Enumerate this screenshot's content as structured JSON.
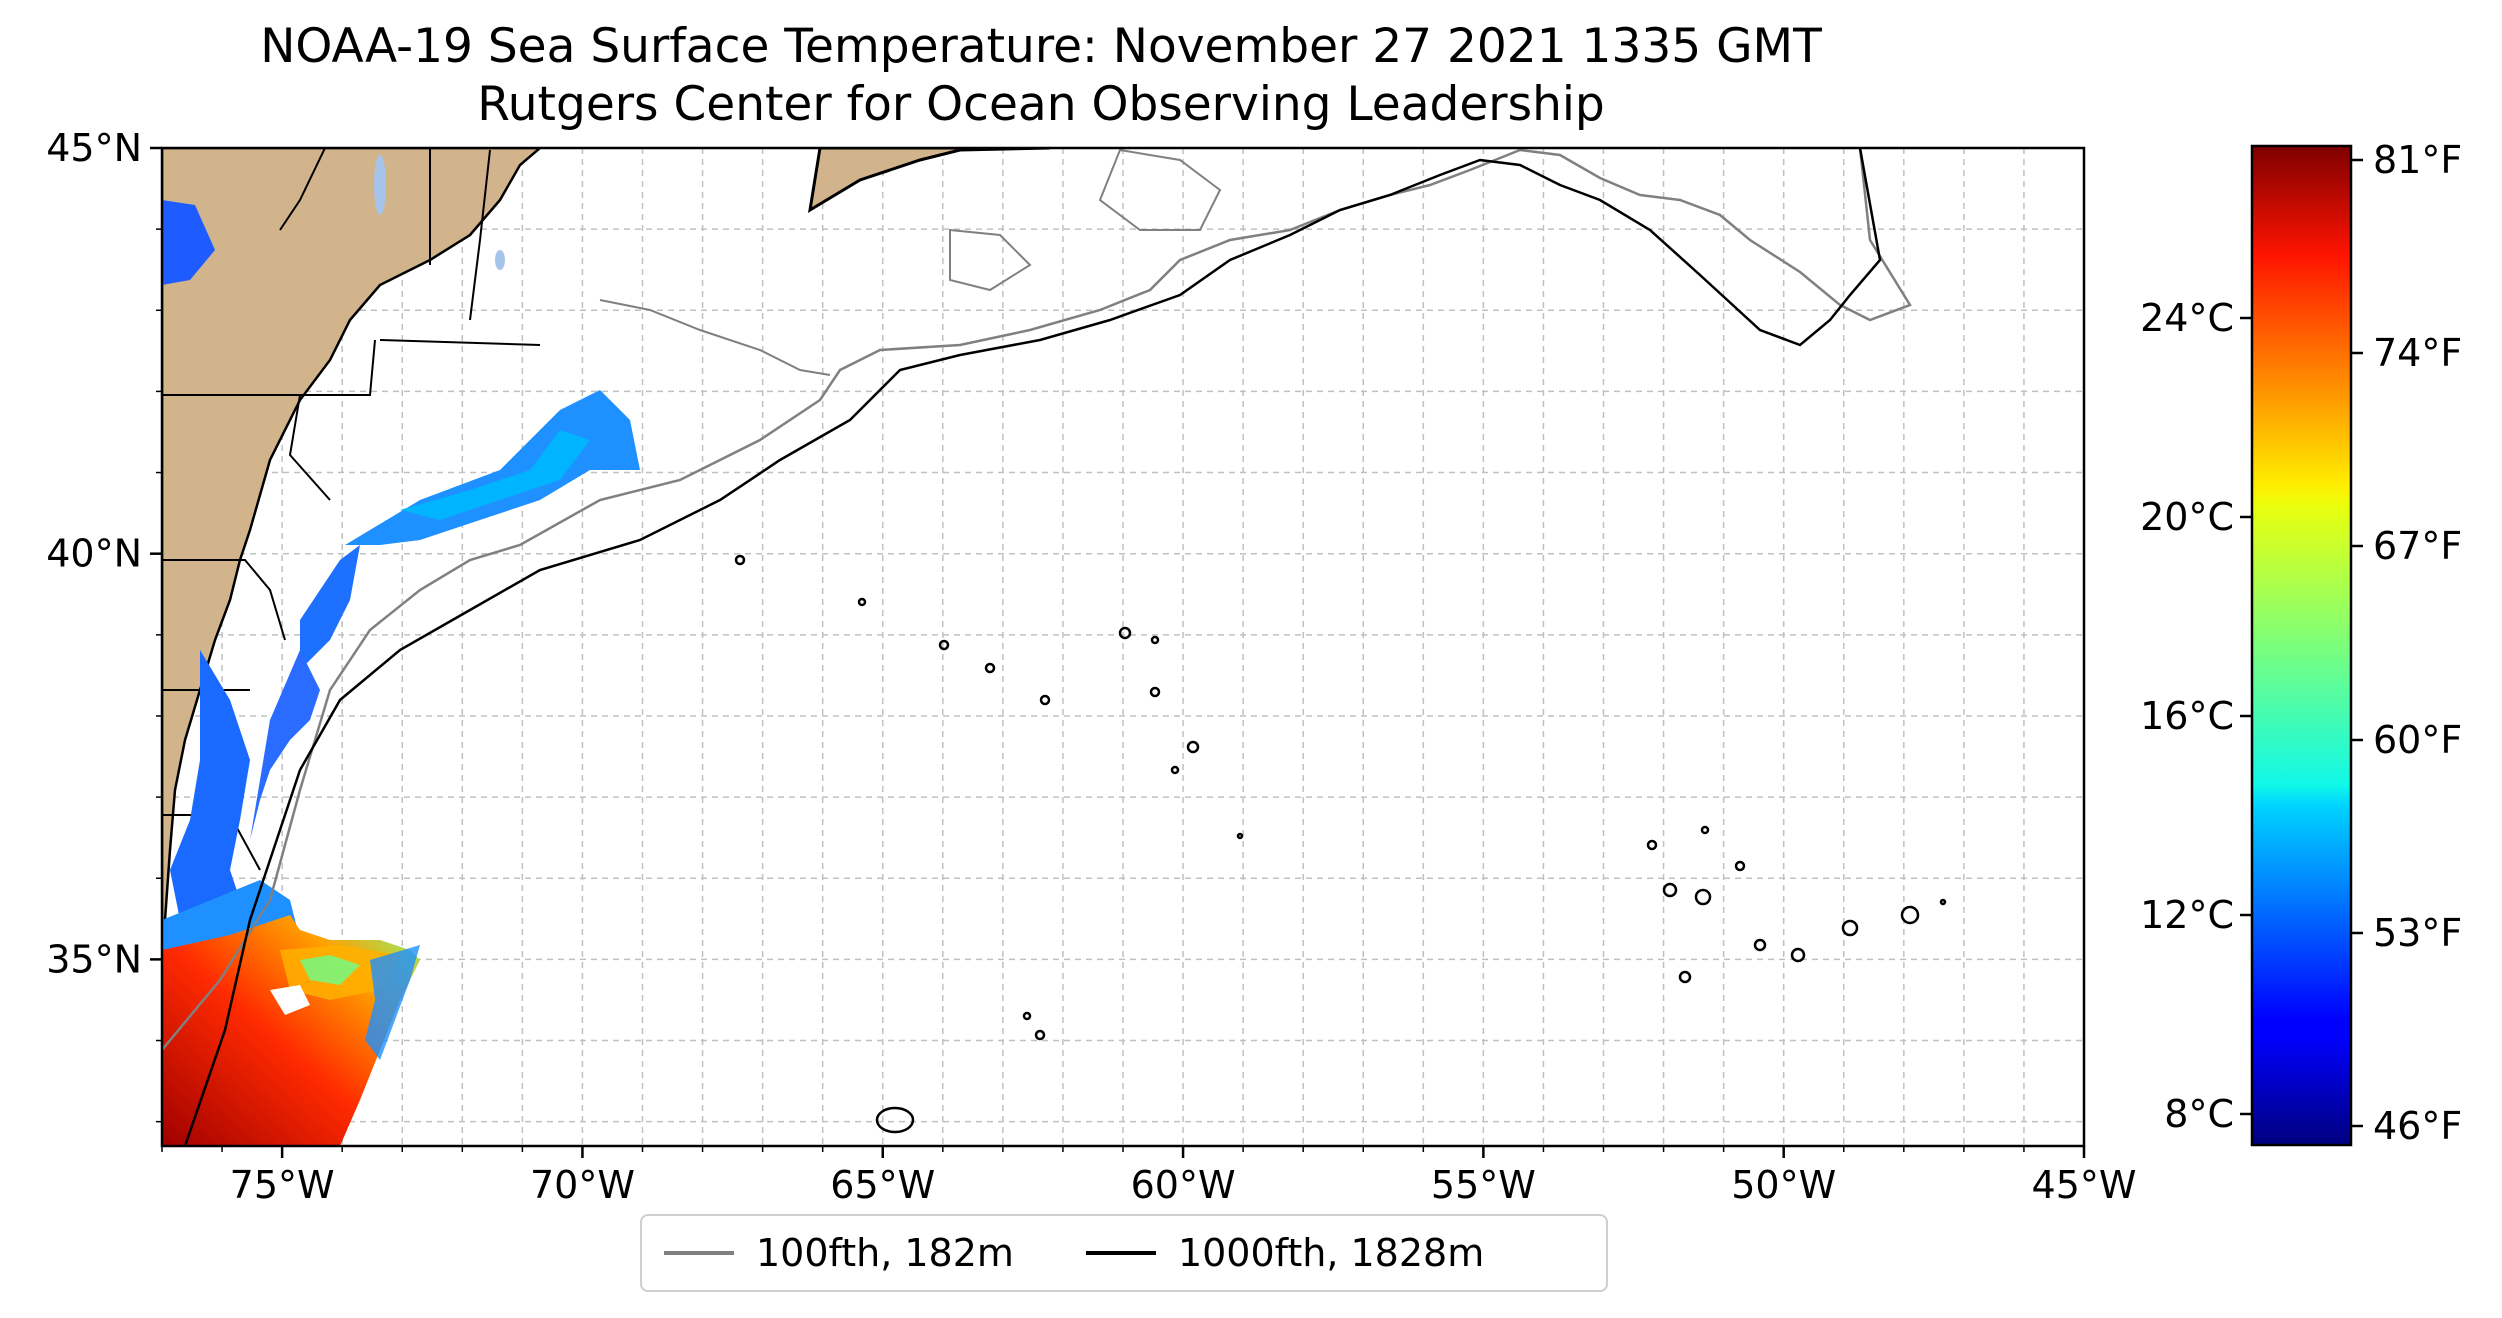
{
  "title": {
    "line1": "NOAA-19 Sea Surface Temperature: November 27 2021 1335 GMT",
    "line2": "Rutgers Center for Ocean Observing Leadership"
  },
  "map": {
    "lon_range": [
      -77,
      -45
    ],
    "lat_range": [
      32.7,
      45
    ],
    "lon_ticks": [
      {
        "value": -75,
        "label": "75°W"
      },
      {
        "value": -70,
        "label": "70°W"
      },
      {
        "value": -65,
        "label": "65°W"
      },
      {
        "value": -60,
        "label": "60°W"
      },
      {
        "value": -55,
        "label": "55°W"
      },
      {
        "value": -50,
        "label": "50°W"
      },
      {
        "value": -45,
        "label": "45°W"
      }
    ],
    "lat_ticks": [
      {
        "value": 35,
        "label": "35°N"
      },
      {
        "value": 40,
        "label": "40°N"
      },
      {
        "value": 45,
        "label": "45°N"
      }
    ],
    "grid": true,
    "land_color": "#d2b48c",
    "lake_color": "#a6c4ea"
  },
  "colorbar": {
    "colormap": "jet",
    "celsius_ticks": [
      "8°C",
      "12°C",
      "16°C",
      "20°C",
      "24°C"
    ],
    "fahrenheit_ticks": [
      "46°F",
      "53°F",
      "60°F",
      "67°F",
      "74°F",
      "81°F"
    ]
  },
  "legend": {
    "items": [
      {
        "label": "100fth, 182m",
        "color": "#808080"
      },
      {
        "label": "1000fth, 1828m",
        "color": "#000000"
      }
    ]
  }
}
